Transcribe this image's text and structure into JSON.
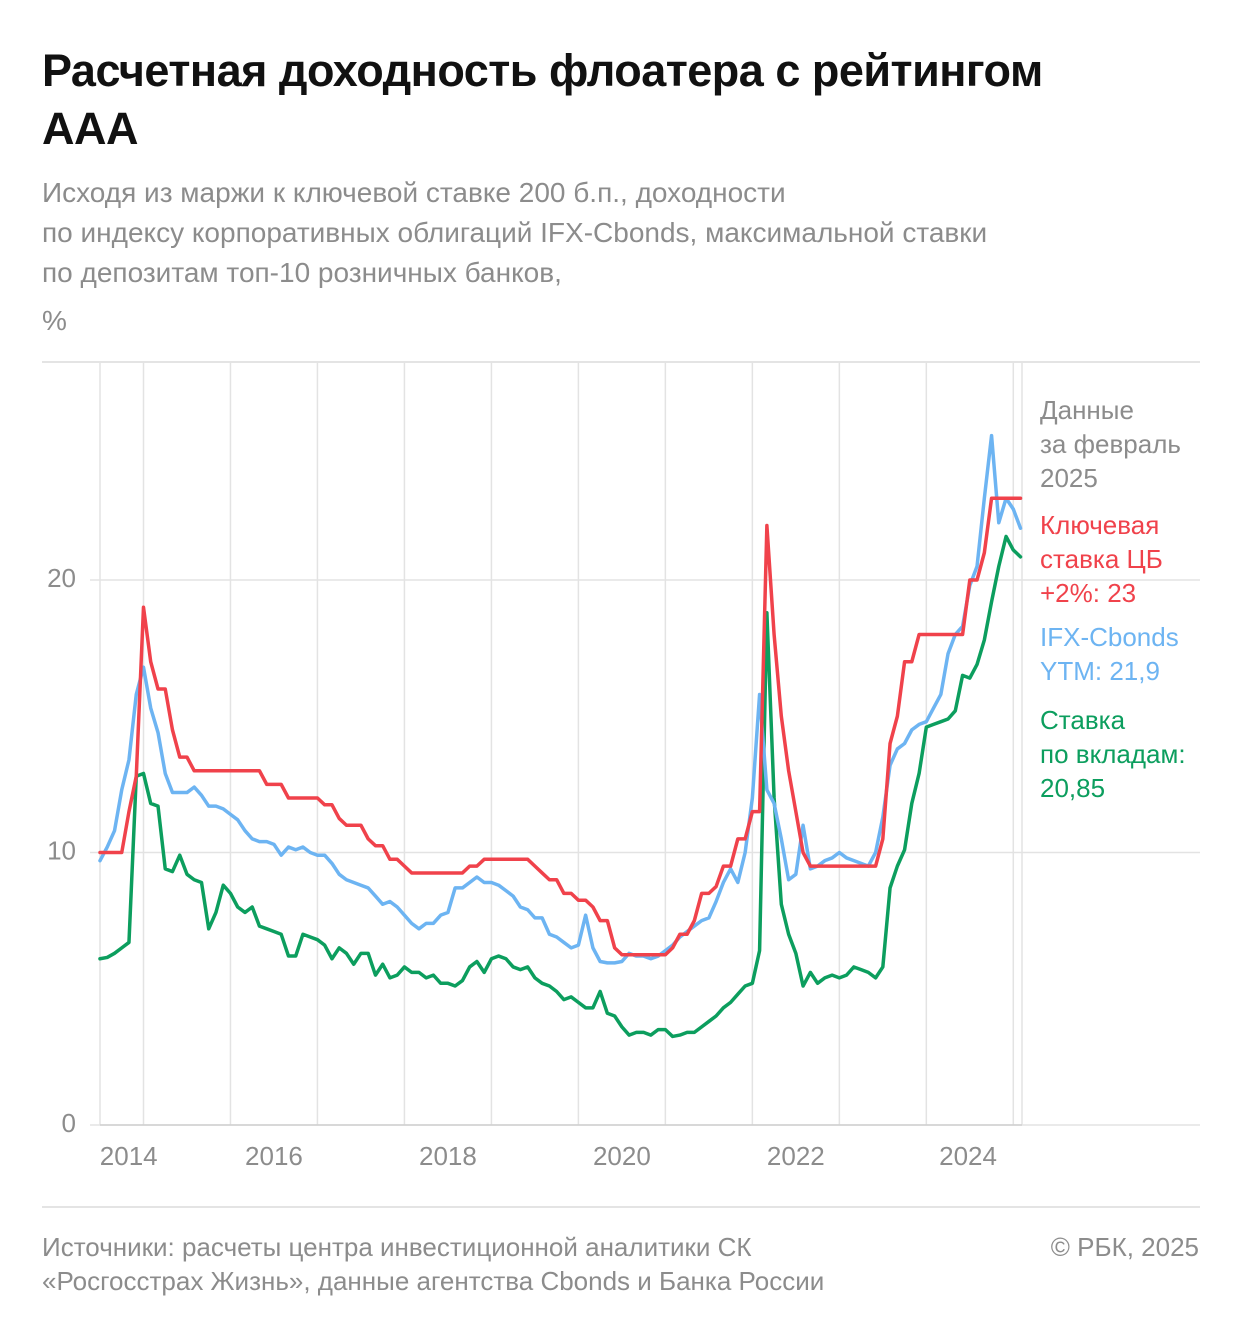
{
  "chart_data": {
    "type": "line",
    "title": "Расчетная доходность флоатера с рейтингом\nААА",
    "subtitle": "Исходя из маржи к ключевой ставке 200 б.п., доходности\nпо индексу корпоративных облигаций IFX-Cbonds, максимальной ставки\nпо депозитам топ-10 розничных банков,",
    "y_label": "%",
    "note": "Данные\nза февраль\n2025",
    "source": "Источники: расчеты центра инвестиционной аналитики СК\n«Росгосстрах Жизнь», данные агентства Cbonds и Банка России",
    "copyright": "© РБК, 2025",
    "xlim": [
      2014.5,
      2025.1
    ],
    "ylim": [
      0,
      28
    ],
    "yticks": [
      0,
      10,
      20
    ],
    "xticks": [
      {
        "value": 2014.83,
        "label": "2014"
      },
      {
        "value": 2016.5,
        "label": "2016"
      },
      {
        "value": 2018.5,
        "label": "2018"
      },
      {
        "value": 2020.5,
        "label": "2020"
      },
      {
        "value": 2022.5,
        "label": "2022"
      },
      {
        "value": 2024.48,
        "label": "2024"
      }
    ],
    "xgrid": [
      2015,
      2016,
      2017,
      2018,
      2019,
      2020,
      2021,
      2022,
      2023,
      2024,
      2025
    ],
    "grid": true,
    "x": [
      2014.5,
      2014.583,
      2014.667,
      2014.75,
      2014.833,
      2014.917,
      2015,
      2015.083,
      2015.167,
      2015.25,
      2015.333,
      2015.417,
      2015.5,
      2015.583,
      2015.667,
      2015.75,
      2015.833,
      2015.917,
      2016,
      2016.083,
      2016.167,
      2016.25,
      2016.333,
      2016.417,
      2016.5,
      2016.583,
      2016.667,
      2016.75,
      2016.833,
      2016.917,
      2017,
      2017.083,
      2017.167,
      2017.25,
      2017.333,
      2017.417,
      2017.5,
      2017.583,
      2017.667,
      2017.75,
      2017.833,
      2017.917,
      2018,
      2018.083,
      2018.167,
      2018.25,
      2018.333,
      2018.417,
      2018.5,
      2018.583,
      2018.667,
      2018.75,
      2018.833,
      2018.917,
      2019,
      2019.083,
      2019.167,
      2019.25,
      2019.333,
      2019.417,
      2019.5,
      2019.583,
      2019.667,
      2019.75,
      2019.833,
      2019.917,
      2020,
      2020.083,
      2020.167,
      2020.25,
      2020.333,
      2020.417,
      2020.5,
      2020.583,
      2020.667,
      2020.75,
      2020.833,
      2020.917,
      2021,
      2021.083,
      2021.167,
      2021.25,
      2021.333,
      2021.417,
      2021.5,
      2021.583,
      2021.667,
      2021.75,
      2021.833,
      2021.917,
      2022,
      2022.083,
      2022.167,
      2022.25,
      2022.333,
      2022.417,
      2022.5,
      2022.583,
      2022.667,
      2022.75,
      2022.833,
      2022.917,
      2023,
      2023.083,
      2023.167,
      2023.25,
      2023.333,
      2023.417,
      2023.5,
      2023.583,
      2023.667,
      2023.75,
      2023.833,
      2023.917,
      2024,
      2024.083,
      2024.167,
      2024.25,
      2024.333,
      2024.417,
      2024.5,
      2024.583,
      2024.667,
      2024.75,
      2024.833,
      2024.917,
      2025,
      2025.083
    ],
    "series": [
      {
        "name": "Ключевая\nставка ЦБ\n+2%: 23",
        "color": "#f0424b",
        "values": [
          10,
          10,
          10,
          10,
          11.5,
          12.8,
          19,
          17,
          16,
          16,
          14.5,
          13.5,
          13.5,
          13,
          13,
          13,
          13,
          13,
          13,
          13,
          13,
          13,
          13,
          12.5,
          12.5,
          12.5,
          12,
          12,
          12,
          12,
          12,
          11.75,
          11.75,
          11.25,
          11,
          11,
          11,
          10.5,
          10.25,
          10.25,
          9.75,
          9.75,
          9.5,
          9.25,
          9.25,
          9.25,
          9.25,
          9.25,
          9.25,
          9.25,
          9.25,
          9.5,
          9.5,
          9.75,
          9.75,
          9.75,
          9.75,
          9.75,
          9.75,
          9.75,
          9.5,
          9.25,
          9,
          9,
          8.5,
          8.5,
          8.25,
          8.25,
          8,
          7.5,
          7.5,
          6.5,
          6.25,
          6.25,
          6.25,
          6.25,
          6.25,
          6.25,
          6.25,
          6.5,
          7,
          7,
          7.5,
          8.5,
          8.5,
          8.75,
          9.5,
          9.5,
          10.5,
          10.5,
          11.5,
          11.5,
          22,
          18,
          15,
          13,
          11.5,
          10,
          9.5,
          9.5,
          9.5,
          9.5,
          9.5,
          9.5,
          9.5,
          9.5,
          9.5,
          9.5,
          10.5,
          14,
          15,
          17,
          17,
          18,
          18,
          18,
          18,
          18,
          18,
          18,
          20,
          20,
          21,
          23,
          23,
          23,
          23,
          23
        ]
      },
      {
        "name": "IFX-Cbonds\nYTM: 21,9",
        "color": "#6db4f2",
        "values": [
          9.7,
          10.2,
          10.8,
          12.3,
          13.4,
          15.8,
          16.8,
          15.3,
          14.4,
          12.9,
          12.2,
          12.2,
          12.2,
          12.4,
          12.1,
          11.7,
          11.7,
          11.6,
          11.4,
          11.2,
          10.8,
          10.5,
          10.4,
          10.4,
          10.3,
          9.9,
          10.2,
          10.1,
          10.2,
          10.0,
          9.9,
          9.9,
          9.6,
          9.2,
          9.0,
          8.9,
          8.8,
          8.7,
          8.4,
          8.1,
          8.2,
          8.0,
          7.7,
          7.4,
          7.2,
          7.4,
          7.4,
          7.7,
          7.8,
          8.7,
          8.7,
          8.9,
          9.1,
          8.9,
          8.9,
          8.8,
          8.6,
          8.4,
          8.0,
          7.9,
          7.6,
          7.6,
          7.0,
          6.9,
          6.7,
          6.5,
          6.6,
          7.7,
          6.5,
          6.0,
          5.95,
          5.95,
          6.0,
          6.3,
          6.2,
          6.2,
          6.1,
          6.2,
          6.4,
          6.6,
          6.9,
          7.1,
          7.3,
          7.5,
          7.6,
          8.2,
          8.9,
          9.4,
          8.9,
          10.0,
          12.0,
          15.8,
          12.3,
          11.8,
          10.5,
          9.0,
          9.2,
          11.0,
          9.4,
          9.5,
          9.7,
          9.8,
          10.0,
          9.8,
          9.7,
          9.6,
          9.5,
          10.0,
          11.3,
          13.2,
          13.8,
          14.0,
          14.5,
          14.7,
          14.8,
          15.3,
          15.8,
          17.3,
          18.0,
          18.3,
          19.8,
          20.5,
          23.0,
          25.3,
          22.1,
          23.0,
          22.6,
          21.9
        ]
      },
      {
        "name": "Ставка\nпо вкладам:\n20,85",
        "color": "#0c9e5e",
        "values": [
          6.1,
          6.15,
          6.3,
          6.5,
          6.7,
          12.8,
          12.9,
          11.8,
          11.7,
          9.4,
          9.3,
          9.9,
          9.2,
          9.0,
          8.9,
          7.2,
          7.8,
          8.8,
          8.5,
          8.0,
          7.8,
          8.0,
          7.3,
          7.2,
          7.1,
          7.0,
          6.2,
          6.2,
          7.0,
          6.9,
          6.8,
          6.6,
          6.1,
          6.5,
          6.3,
          5.9,
          6.3,
          6.3,
          5.5,
          5.9,
          5.4,
          5.5,
          5.8,
          5.6,
          5.6,
          5.4,
          5.5,
          5.2,
          5.2,
          5.1,
          5.3,
          5.8,
          6.0,
          5.6,
          6.1,
          6.2,
          6.1,
          5.8,
          5.7,
          5.8,
          5.4,
          5.2,
          5.1,
          4.9,
          4.6,
          4.7,
          4.5,
          4.3,
          4.3,
          4.9,
          4.1,
          4.0,
          3.6,
          3.3,
          3.4,
          3.4,
          3.3,
          3.5,
          3.5,
          3.25,
          3.3,
          3.4,
          3.4,
          3.6,
          3.8,
          4.0,
          4.3,
          4.5,
          4.8,
          5.1,
          5.2,
          6.4,
          18.8,
          12.0,
          8.1,
          7.0,
          6.3,
          5.1,
          5.6,
          5.2,
          5.4,
          5.5,
          5.4,
          5.5,
          5.8,
          5.7,
          5.6,
          5.4,
          5.8,
          8.7,
          9.5,
          10.1,
          11.8,
          12.9,
          14.6,
          14.7,
          14.8,
          14.9,
          15.2,
          16.5,
          16.4,
          16.9,
          17.8,
          19.2,
          20.5,
          21.6,
          21.1,
          20.85
        ]
      }
    ]
  }
}
